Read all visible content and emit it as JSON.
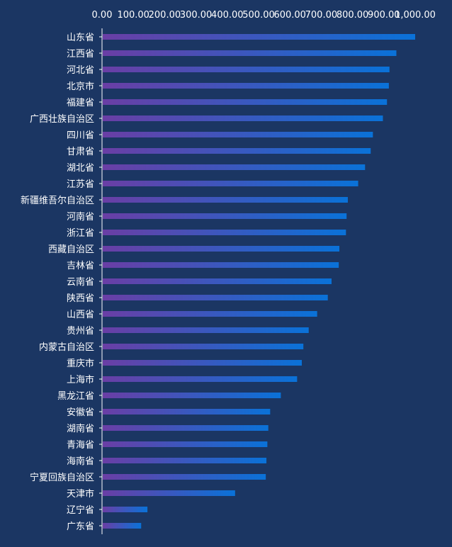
{
  "chart_data": {
    "type": "bar",
    "orientation": "horizontal",
    "categories": [
      "山东省",
      "江西省",
      "河北省",
      "北京市",
      "福建省",
      "广西壮族自治区",
      "四川省",
      "甘肃省",
      "湖北省",
      "江苏省",
      "新疆维吾尔自治区",
      "河南省",
      "浙江省",
      "西藏自治区",
      "吉林省",
      "云南省",
      "陕西省",
      "山西省",
      "贵州省",
      "内蒙古自治区",
      "重庆市",
      "上海市",
      "黑龙江省",
      "安徽省",
      "湖南省",
      "青海省",
      "海南省",
      "宁夏回族自治区",
      "天津市",
      "辽宁省",
      "广东省"
    ],
    "values": [
      1000,
      940,
      918,
      916,
      910,
      897,
      865,
      858,
      840,
      818,
      785,
      781,
      779,
      758,
      756,
      733,
      721,
      687,
      660,
      643,
      638,
      623,
      571,
      537,
      531,
      528,
      525,
      523,
      425,
      145,
      125
    ],
    "xticks": [
      "0.00",
      "100.00",
      "200.00",
      "300.00",
      "400.00",
      "500.00",
      "600.00",
      "700.00",
      "800.00",
      "900.00",
      "1,000.00"
    ],
    "xlim": [
      0,
      1000
    ],
    "xaxis_position": "top",
    "grid": false,
    "bar_gradient": [
      "#6a3ea5",
      "#0a72d8"
    ],
    "label_color": "#ffffff",
    "axis_color": "#ffffff"
  }
}
